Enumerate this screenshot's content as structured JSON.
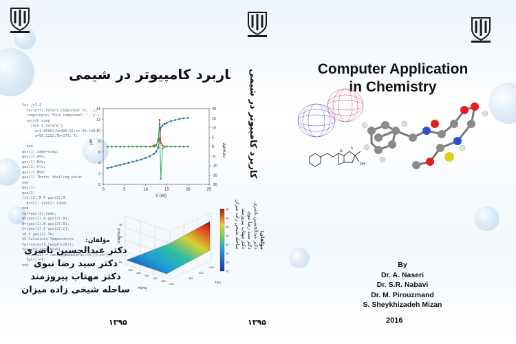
{
  "back_cover": {
    "title": "کاربرد کامپیوتر در شیمی",
    "code_lines": [
      "for j=1:2",
      "  fprintf('Select component %i ',j)",
      "  comp=input('Your component: ','s');",
      "  switch comp",
      "    case {'butane'}",
      "      a=3.85052;b=909.65;c=-36.146;",
      "      w=58.1222;Tb=273; Tc",
      "  ...",
      "  end",
      "",
      "gas(1).name=comp;",
      "gas(1).A=a;",
      "gas(1).B=b;",
      "gas(1).C=c;",
      "gas(1).M=m;",
      "gas(1).Tb=tb; %boiling point",
      "end",
      "gas(1)",
      "gas(2)",
      "[t1,t2] M P gas(2).M",
      "  dt=t1; t1=t2; t2=d;",
      "end",
      "val=gas(1).name;",
      "",
      "A=[gas(1).A gas(2).A];",
      "B=[gas(1).B gas(2).B];",
      "C=[gas(1).C gas(2).C];",
      "x0 = gas(1).Tb;",
      "%% Calculate Temperature",
      "Tpl=zeros(1,length(x0));",
      "for j=1:length(x0)",
      "  [T,fval] = fzero(@bubblefun,x0,[],xA(j));",
      "  Tpl(j)=T;",
      "end"
    ],
    "authors_heading": "مؤلفان:",
    "authors": [
      "دکتر عبدالحسین ناصری",
      "دکتر سید رضا نبوی",
      "دکتر مهتاب پیروزمند",
      "ساحله شیخی زاده میزان"
    ],
    "year": "۱۳۹۵"
  },
  "spine": {
    "title": "کاربرد کامپیوتر در شیمی",
    "authors_heading": "مؤلفان:",
    "authors": [
      "دکتر عبدالحسین ناصری",
      "دکتر سید رضا نبوی",
      "دکتر مهتاب پیروزمند",
      "ساحله شیخی زاده میزان"
    ],
    "year": "۱۳۹۵"
  },
  "front_cover": {
    "title_line1": "Computer Application",
    "title_line2": "in Chemistry",
    "by_label": "By",
    "authors": [
      "Dr. A. Naseri",
      "Dr. S.R. Nabavi",
      "Dr. M. Pirouzmand",
      "S. Sheykhizadeh Mizan"
    ],
    "year": "2016"
  },
  "colors": {
    "accent_blue": "#1f6fb5",
    "series_red": "#e0302a",
    "series_green": "#2aa84a",
    "logo_dark": "#1a1a1a"
  },
  "chart_data": [
    {
      "type": "line",
      "xlabel": "V (ml)",
      "ylabel": "pH",
      "y2label": "ΔpH/ΔV",
      "xlim": [
        0,
        25
      ],
      "ylim": [
        0,
        14
      ],
      "y2lim": [
        -20,
        20
      ],
      "x_ticks": [
        0,
        5,
        10,
        15,
        20,
        25
      ],
      "y_ticks": [
        0,
        2,
        4,
        6,
        8,
        10,
        12,
        14
      ],
      "y2_ticks": [
        -20,
        -15,
        -10,
        -5,
        0,
        5,
        10,
        15,
        20
      ],
      "series": [
        {
          "axis": "left",
          "color": "#1f6fb5",
          "x": [
            1,
            2,
            3,
            4,
            5,
            6,
            7,
            8,
            9,
            10,
            11,
            12,
            12.5,
            13,
            13.3,
            13.6,
            14,
            14.5,
            15,
            16,
            17,
            18,
            19,
            20
          ],
          "y": [
            3.0,
            3.2,
            3.4,
            3.6,
            3.8,
            4.0,
            4.2,
            4.4,
            4.6,
            4.9,
            5.2,
            5.7,
            6.1,
            6.8,
            8.5,
            10.5,
            10.9,
            11.2,
            11.4,
            11.7,
            11.9,
            12.1,
            12.2,
            12.3
          ]
        },
        {
          "axis": "right",
          "color": "#e0302a",
          "x": [
            1,
            2,
            3,
            4,
            5,
            6,
            7,
            8,
            9,
            10,
            11,
            12,
            12.5,
            13,
            13.3,
            13.6,
            14,
            14.5,
            15,
            16,
            17,
            18,
            19,
            20
          ],
          "y": [
            0,
            0,
            0,
            0,
            0,
            0,
            0,
            0,
            0,
            0,
            0,
            0.5,
            1,
            3,
            14,
            2,
            0.5,
            0,
            0,
            0,
            0,
            0,
            0,
            0
          ]
        },
        {
          "axis": "right",
          "color": "#2aa84a",
          "x": [
            1,
            2,
            3,
            4,
            5,
            6,
            7,
            8,
            9,
            10,
            11,
            12,
            12.5,
            13,
            13.3,
            13.6,
            14,
            14.5,
            15,
            16,
            17,
            18,
            19,
            20
          ],
          "y": [
            0,
            0,
            0,
            0,
            0,
            0,
            0,
            0,
            0,
            0,
            0,
            0,
            0.5,
            4,
            12,
            -17,
            -1,
            0,
            0,
            0,
            0,
            0,
            0,
            0
          ]
        }
      ]
    },
    {
      "type": "heatmap",
      "xlabel": "P(kPa)",
      "ylabel": "T(K)",
      "zlabel": "V(dm³/mol)",
      "x_ticks": [
        100,
        120,
        140,
        160,
        180,
        200
      ],
      "y_ticks": [
        300,
        350,
        400
      ],
      "z_ticks": [
        20,
        25,
        30,
        35
      ],
      "colorbar_ticks": [
        15,
        20,
        25,
        30,
        35,
        40,
        45,
        50
      ]
    }
  ]
}
